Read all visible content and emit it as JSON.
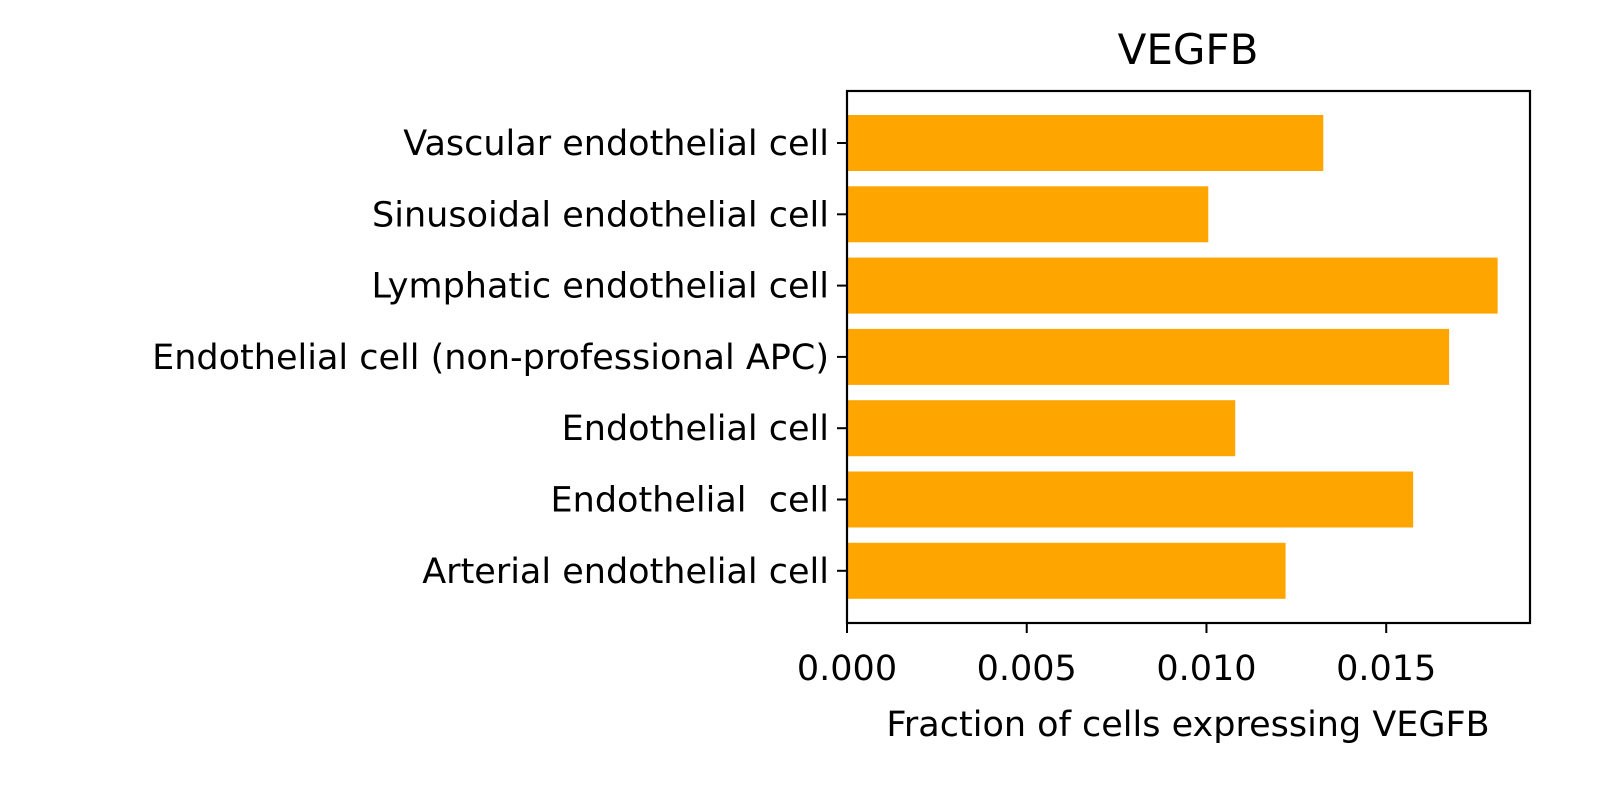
{
  "chart_data": {
    "type": "bar",
    "orientation": "horizontal",
    "title": "VEGFB",
    "xlabel": "Fraction of cells expressing VEGFB",
    "ylabel": "",
    "categories": [
      "Vascular endothelial cell",
      "Sinusoidal endothelial cell",
      "Lymphatic endothelial cell",
      "Endothelial cell (non-professional APC)",
      "Endothelial cell",
      "Endothelial  cell",
      "Arterial endothelial cell"
    ],
    "values": [
      0.01325,
      0.01005,
      0.0181,
      0.01675,
      0.0108,
      0.01575,
      0.0122
    ],
    "xlim": [
      0,
      0.019
    ],
    "xticks": [
      0.0,
      0.005,
      0.01,
      0.015
    ],
    "xtick_labels": [
      "0.000",
      "0.005",
      "0.010",
      "0.015"
    ],
    "bar_color": "#ffa500",
    "grid": false,
    "legend": "none"
  }
}
